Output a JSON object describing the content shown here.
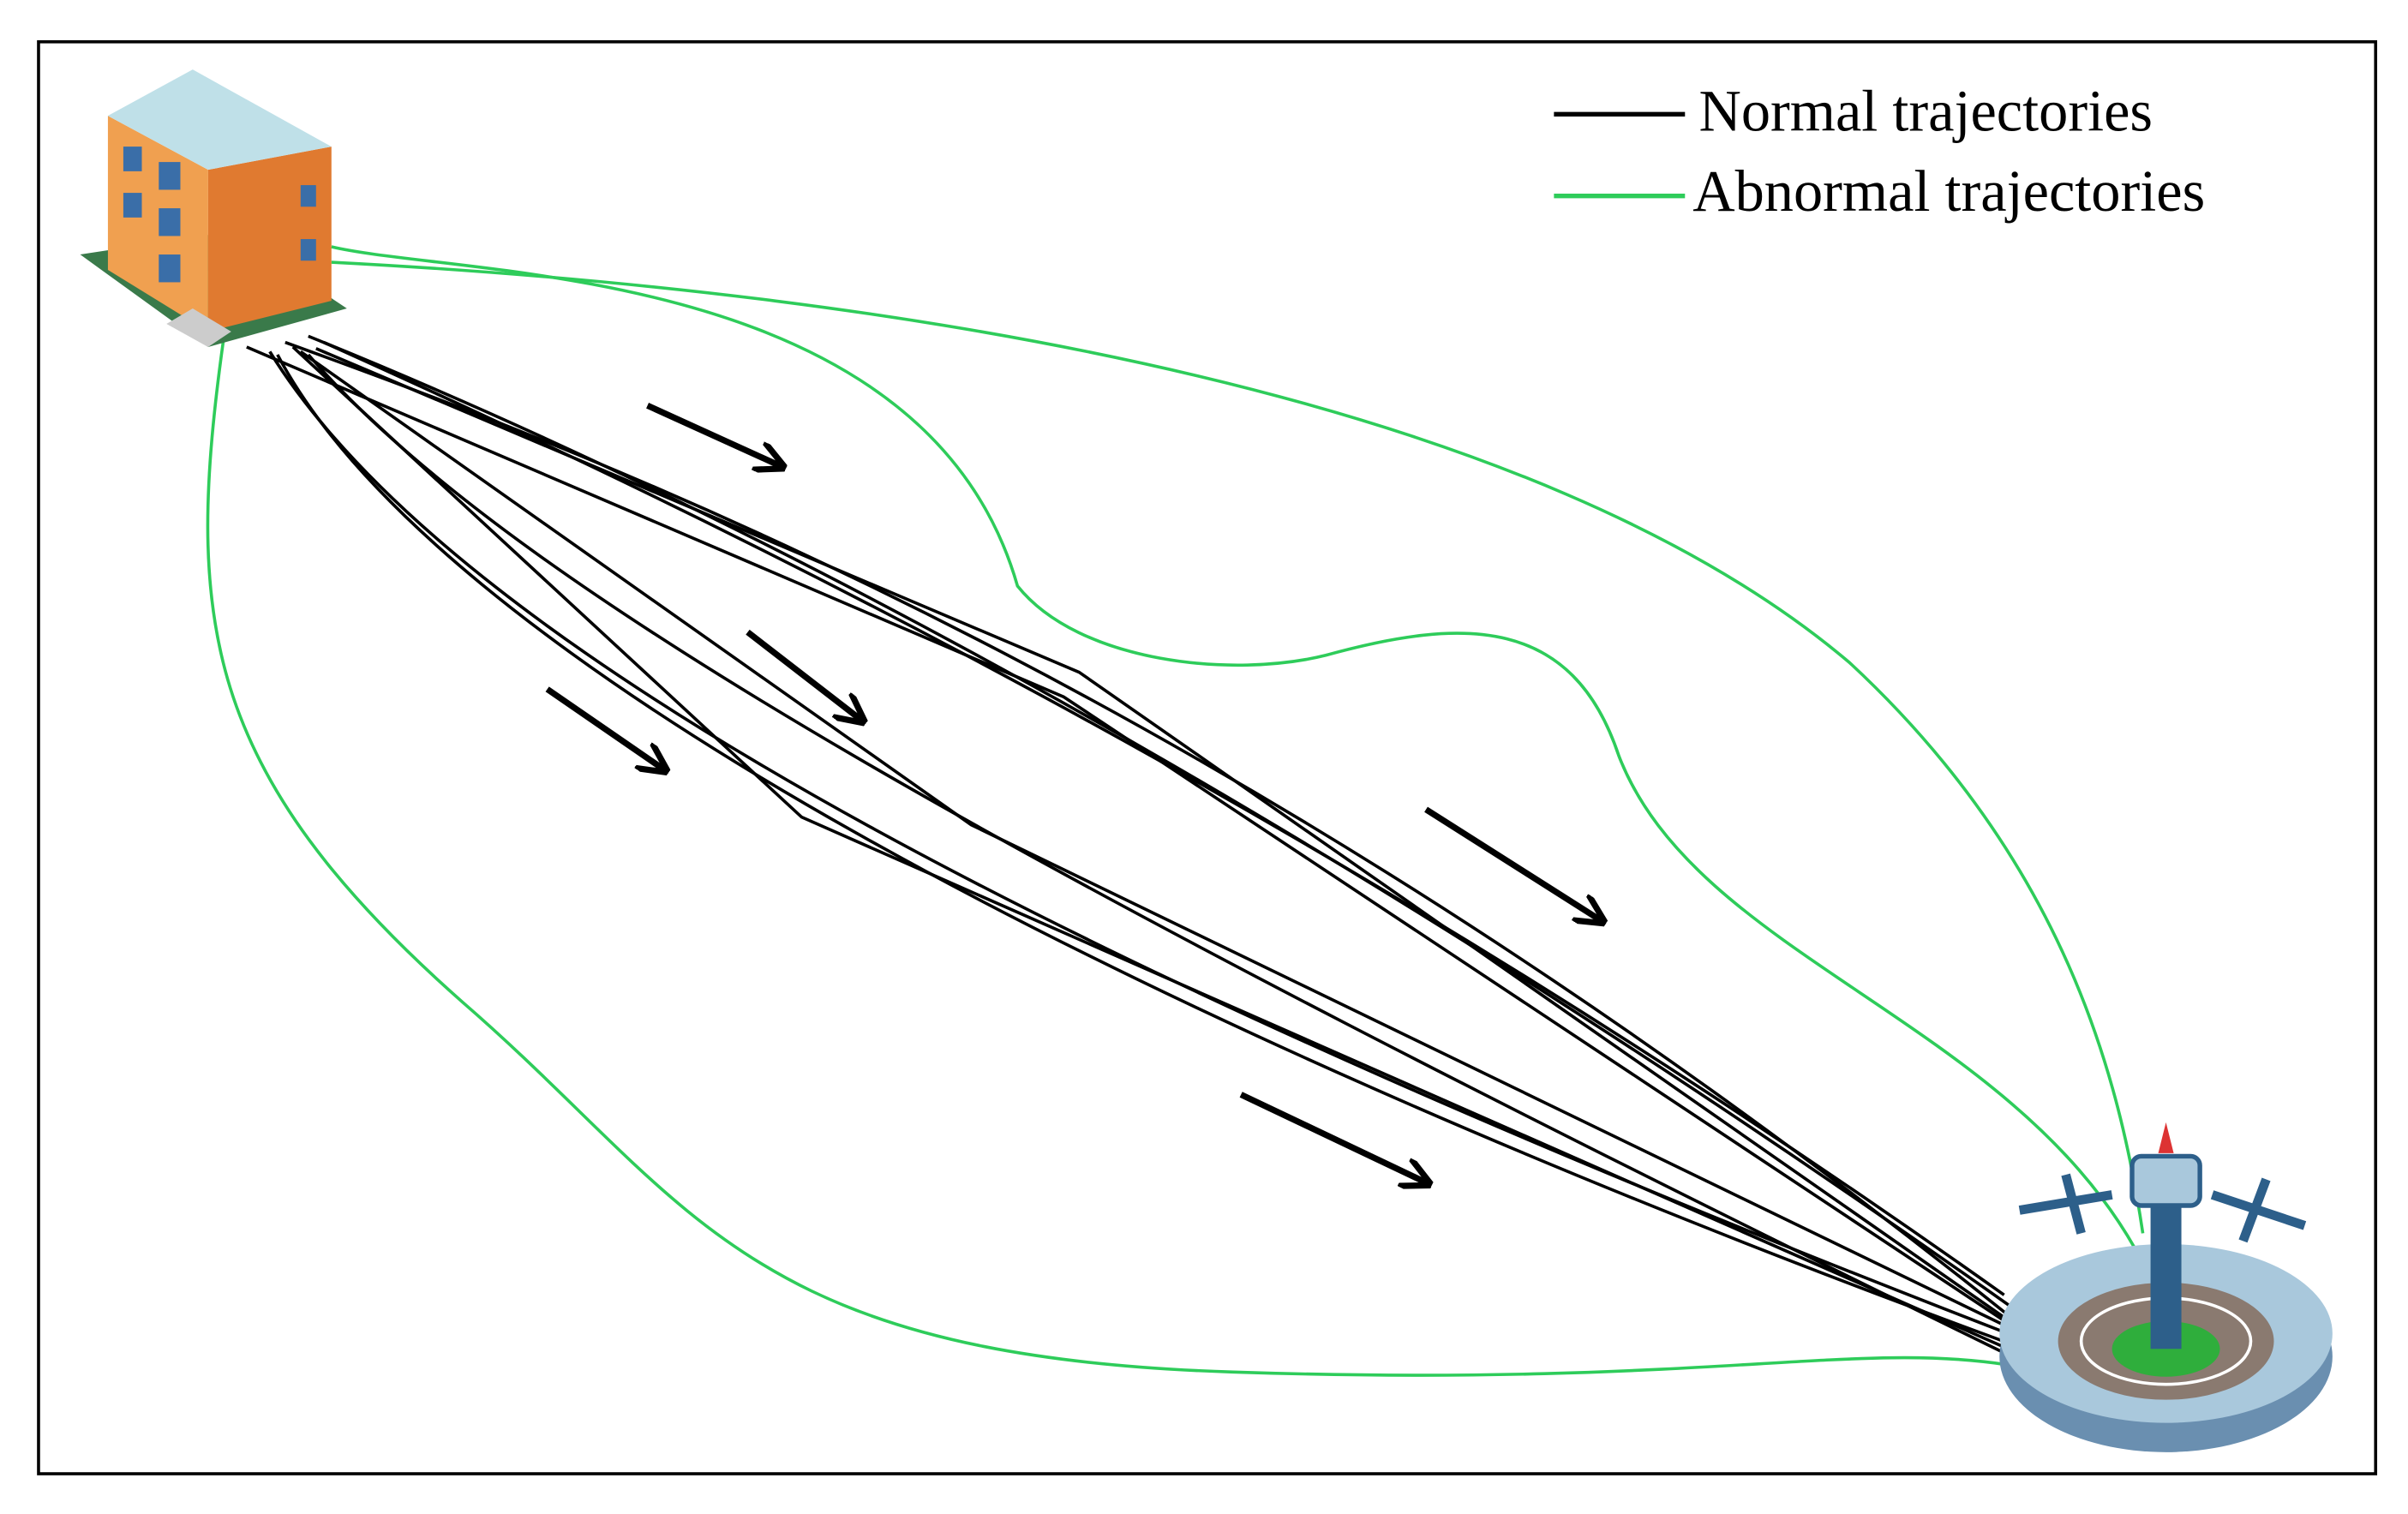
{
  "legend": {
    "items": [
      {
        "label": "Normal trajectories"
      },
      {
        "label": "Abnormal trajectories"
      }
    ]
  }
}
